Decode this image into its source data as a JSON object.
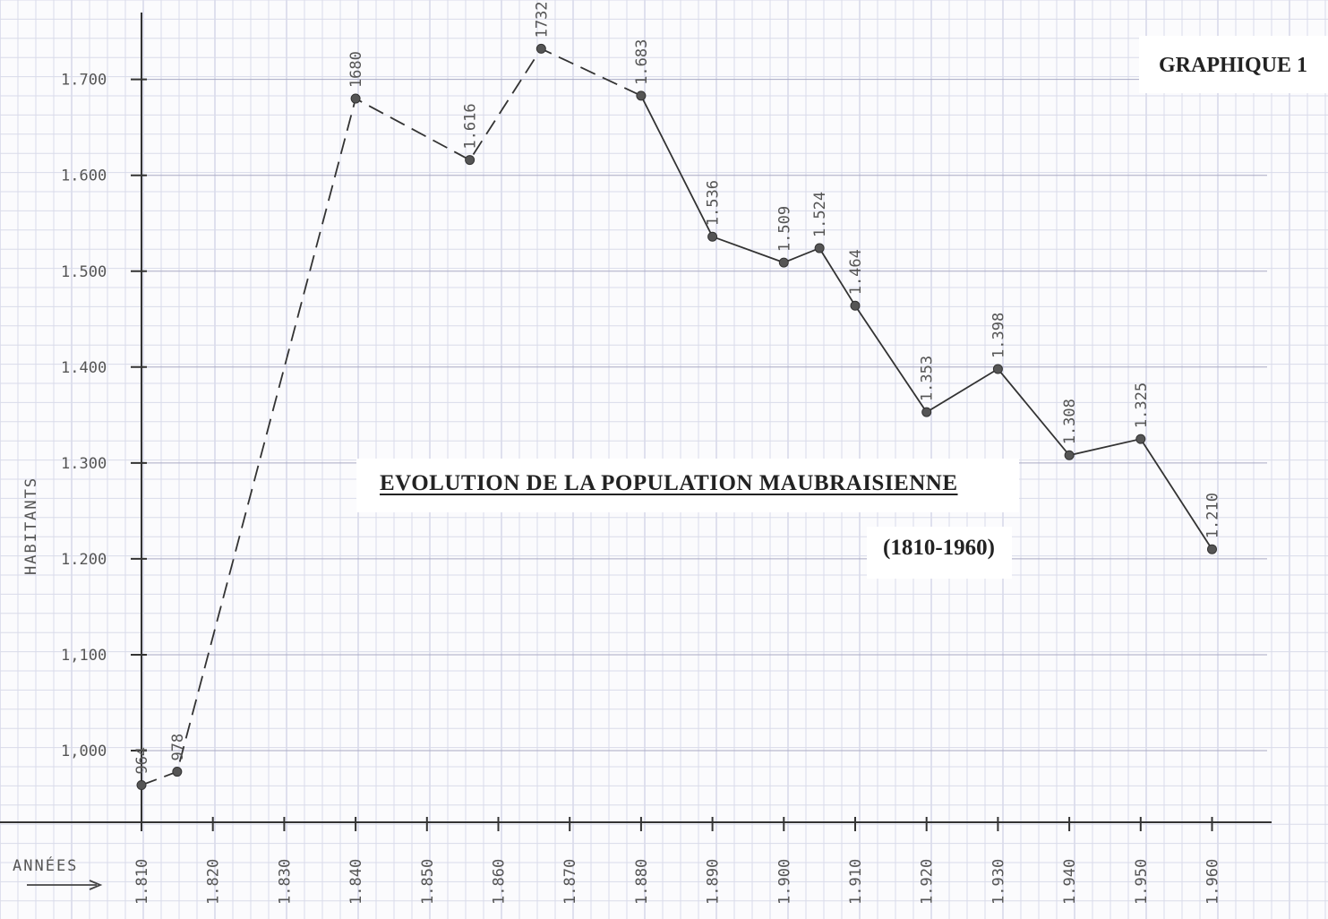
{
  "figure_label": "GRAPHIQUE 1",
  "title": "EVOLUTION DE LA POPULATION MAUBRAISIENNE",
  "subtitle": "(1810-1960)",
  "chart_data": {
    "type": "line",
    "title": "EVOLUTION DE LA POPULATION MAUBRAISIENNE",
    "subtitle": "(1810-1960)",
    "xlabel": "ANNÉES",
    "ylabel": "HABITANTS",
    "x_ticks": [
      "1.810",
      "1.820",
      "1.830",
      "1.840",
      "1.850",
      "1.860",
      "1.870",
      "1.880",
      "1.890",
      "1.900",
      "1.910",
      "1.920",
      "1.930",
      "1.940",
      "1.950",
      "1.960"
    ],
    "y_ticks": [
      "1,000",
      "1,100",
      "1.200",
      "1.300",
      "1.400",
      "1.500",
      "1.600",
      "1.700"
    ],
    "xlim": [
      1810,
      1970
    ],
    "ylim": [
      925,
      1775
    ],
    "grid": true,
    "series": [
      {
        "style": "dashed",
        "points": [
          {
            "x": 1810,
            "y": 964,
            "label": "964"
          },
          {
            "x": 1815,
            "y": 978,
            "label": "978"
          },
          {
            "x": 1840,
            "y": 1680,
            "label": "1680"
          },
          {
            "x": 1856,
            "y": 1616,
            "label": "1.616"
          },
          {
            "x": 1866,
            "y": 1732,
            "label": "1732"
          },
          {
            "x": 1880,
            "y": 1683,
            "label": "1.683"
          }
        ]
      },
      {
        "style": "solid",
        "points": [
          {
            "x": 1880,
            "y": 1683,
            "label": ""
          },
          {
            "x": 1890,
            "y": 1536,
            "label": "1.536"
          },
          {
            "x": 1900,
            "y": 1509,
            "label": "1.509"
          },
          {
            "x": 1905,
            "y": 1524,
            "label": "1.524"
          },
          {
            "x": 1910,
            "y": 1464,
            "label": "1.464"
          },
          {
            "x": 1920,
            "y": 1353,
            "label": "1.353"
          },
          {
            "x": 1930,
            "y": 1398,
            "label": "1.398"
          },
          {
            "x": 1940,
            "y": 1308,
            "label": "1.308"
          },
          {
            "x": 1950,
            "y": 1325,
            "label": "1.325"
          },
          {
            "x": 1960,
            "y": 1210,
            "label": "1.210"
          }
        ]
      }
    ]
  }
}
